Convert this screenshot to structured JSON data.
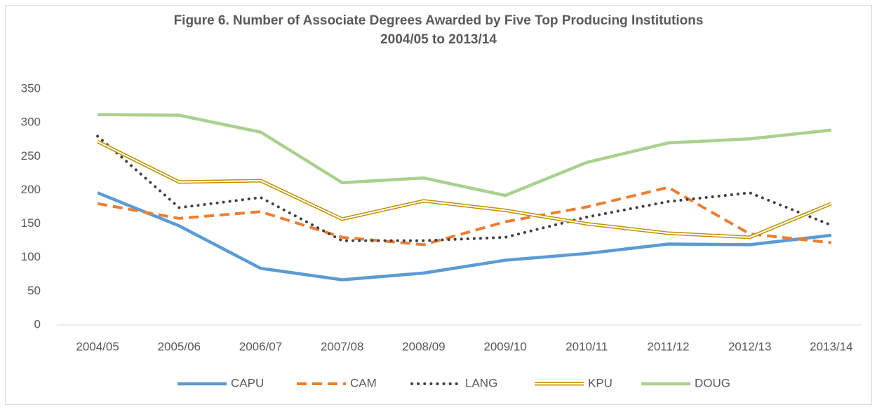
{
  "chart_data": {
    "type": "line",
    "title": [
      "Figure 6. Number of Associate Degrees Awarded by Five Top Producing Institutions",
      "2004/05 to 2013/14"
    ],
    "categories": [
      "2004/05",
      "2005/06",
      "2006/07",
      "2007/08",
      "2008/09",
      "2009/10",
      "2010/11",
      "2011/12",
      "2012/13",
      "2013/14"
    ],
    "series": [
      {
        "name": "CAPU",
        "color": "#5b9bd5",
        "line_style": "solid",
        "values": [
          196,
          147,
          84,
          67,
          77,
          96,
          106,
          120,
          119,
          133
        ]
      },
      {
        "name": "CAM",
        "color": "#ed7d31",
        "line_style": "dashed",
        "values": [
          180,
          158,
          168,
          130,
          119,
          153,
          175,
          204,
          135,
          122
        ]
      },
      {
        "name": "LANG",
        "color": "#404040",
        "line_style": "dotted",
        "values": [
          280,
          174,
          189,
          125,
          125,
          130,
          160,
          183,
          196,
          148
        ]
      },
      {
        "name": "KPU",
        "color": "#bf9000",
        "line_style": "double",
        "values": [
          272,
          212,
          214,
          157,
          184,
          170,
          150,
          136,
          130,
          180
        ]
      },
      {
        "name": "DOUG",
        "color": "#a9d18e",
        "line_style": "solid",
        "values": [
          312,
          311,
          286,
          211,
          218,
          192,
          241,
          270,
          276,
          289
        ]
      }
    ],
    "ylim": [
      0,
      350
    ],
    "yticks": [
      0,
      50,
      100,
      150,
      200,
      250,
      300,
      350
    ],
    "grid": false,
    "legend": "bottom"
  }
}
